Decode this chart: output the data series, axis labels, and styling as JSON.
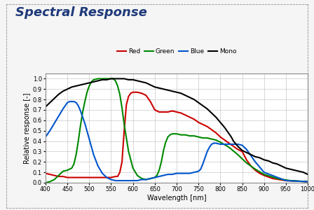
{
  "title": "Spectral Response",
  "xlabel": "Wavelength [nm]",
  "ylabel": "Relative response [-]",
  "xlim": [
    400,
    1000
  ],
  "ylim": [
    0.0,
    1.05
  ],
  "xticks": [
    400,
    450,
    500,
    550,
    600,
    650,
    700,
    750,
    800,
    850,
    900,
    950,
    1000
  ],
  "yticks": [
    0.0,
    0.1,
    0.2,
    0.3,
    0.4,
    0.5,
    0.6,
    0.7,
    0.8,
    0.9,
    1.0
  ],
  "title_color": "#1F3A7A",
  "background_color": "#f5f5f5",
  "plot_bg_color": "#ffffff",
  "red": {
    "wavelengths": [
      400,
      410,
      420,
      430,
      440,
      450,
      460,
      470,
      480,
      490,
      500,
      510,
      520,
      530,
      540,
      550,
      560,
      565,
      570,
      575,
      580,
      585,
      590,
      595,
      600,
      605,
      610,
      620,
      630,
      640,
      650,
      660,
      670,
      680,
      690,
      700,
      710,
      720,
      730,
      740,
      750,
      760,
      770,
      780,
      790,
      800,
      810,
      820,
      830,
      840,
      850,
      860,
      870,
      880,
      890,
      900,
      920,
      950,
      1000
    ],
    "values": [
      0.09,
      0.08,
      0.07,
      0.06,
      0.06,
      0.05,
      0.05,
      0.05,
      0.05,
      0.05,
      0.05,
      0.05,
      0.05,
      0.05,
      0.05,
      0.05,
      0.06,
      0.06,
      0.1,
      0.2,
      0.5,
      0.75,
      0.83,
      0.86,
      0.87,
      0.87,
      0.87,
      0.86,
      0.84,
      0.78,
      0.7,
      0.68,
      0.68,
      0.68,
      0.69,
      0.68,
      0.67,
      0.65,
      0.63,
      0.61,
      0.58,
      0.56,
      0.54,
      0.51,
      0.48,
      0.44,
      0.41,
      0.38,
      0.35,
      0.32,
      0.3,
      0.22,
      0.16,
      0.12,
      0.09,
      0.07,
      0.04,
      0.02,
      0.01
    ],
    "color": "#cc0000",
    "linewidth": 1.5
  },
  "green": {
    "wavelengths": [
      400,
      410,
      420,
      430,
      440,
      450,
      460,
      465,
      470,
      475,
      480,
      485,
      490,
      495,
      500,
      505,
      510,
      520,
      530,
      540,
      550,
      555,
      560,
      565,
      570,
      575,
      580,
      590,
      600,
      610,
      620,
      630,
      640,
      650,
      655,
      660,
      665,
      670,
      675,
      680,
      685,
      690,
      695,
      700,
      710,
      720,
      730,
      740,
      750,
      760,
      770,
      780,
      790,
      800,
      820,
      840,
      860,
      880,
      900,
      930,
      960,
      1000
    ],
    "values": [
      0.0,
      0.01,
      0.03,
      0.07,
      0.11,
      0.12,
      0.14,
      0.18,
      0.27,
      0.4,
      0.55,
      0.68,
      0.78,
      0.87,
      0.93,
      0.97,
      0.99,
      1.0,
      1.0,
      1.0,
      1.0,
      1.0,
      0.98,
      0.93,
      0.85,
      0.72,
      0.56,
      0.3,
      0.14,
      0.07,
      0.04,
      0.03,
      0.04,
      0.05,
      0.07,
      0.12,
      0.2,
      0.31,
      0.39,
      0.44,
      0.46,
      0.47,
      0.47,
      0.47,
      0.46,
      0.46,
      0.45,
      0.45,
      0.44,
      0.43,
      0.43,
      0.42,
      0.41,
      0.39,
      0.34,
      0.27,
      0.19,
      0.13,
      0.08,
      0.04,
      0.02,
      0.01
    ],
    "color": "#008800",
    "linewidth": 1.5
  },
  "blue": {
    "wavelengths": [
      400,
      410,
      420,
      430,
      440,
      450,
      455,
      460,
      465,
      470,
      475,
      480,
      490,
      500,
      510,
      520,
      530,
      540,
      550,
      560,
      570,
      580,
      590,
      600,
      610,
      620,
      630,
      640,
      650,
      660,
      670,
      680,
      690,
      700,
      710,
      720,
      730,
      740,
      750,
      755,
      760,
      765,
      770,
      775,
      780,
      785,
      790,
      800,
      810,
      820,
      830,
      840,
      850,
      860,
      880,
      900,
      950,
      1000
    ],
    "values": [
      0.44,
      0.5,
      0.57,
      0.64,
      0.71,
      0.77,
      0.78,
      0.78,
      0.78,
      0.77,
      0.74,
      0.69,
      0.57,
      0.42,
      0.27,
      0.16,
      0.09,
      0.05,
      0.03,
      0.02,
      0.02,
      0.02,
      0.02,
      0.02,
      0.02,
      0.03,
      0.03,
      0.04,
      0.05,
      0.06,
      0.07,
      0.08,
      0.08,
      0.09,
      0.09,
      0.09,
      0.09,
      0.1,
      0.11,
      0.13,
      0.18,
      0.24,
      0.3,
      0.34,
      0.37,
      0.38,
      0.38,
      0.37,
      0.37,
      0.37,
      0.37,
      0.37,
      0.36,
      0.32,
      0.2,
      0.1,
      0.02,
      0.01
    ],
    "color": "#0055cc",
    "linewidth": 1.5
  },
  "mono": {
    "wavelengths": [
      400,
      410,
      420,
      430,
      440,
      450,
      460,
      470,
      480,
      490,
      500,
      510,
      520,
      530,
      540,
      550,
      560,
      570,
      580,
      590,
      600,
      610,
      620,
      630,
      640,
      650,
      660,
      670,
      680,
      690,
      700,
      710,
      720,
      730,
      740,
      750,
      760,
      770,
      780,
      790,
      800,
      810,
      820,
      825,
      830,
      840,
      850,
      860,
      870,
      880,
      890,
      900,
      910,
      920,
      930,
      940,
      950,
      960,
      970,
      980,
      990,
      1000
    ],
    "values": [
      0.73,
      0.77,
      0.81,
      0.85,
      0.88,
      0.9,
      0.92,
      0.93,
      0.94,
      0.95,
      0.96,
      0.97,
      0.98,
      0.99,
      0.99,
      1.0,
      1.0,
      1.0,
      1.0,
      0.99,
      0.99,
      0.98,
      0.97,
      0.96,
      0.94,
      0.92,
      0.91,
      0.9,
      0.89,
      0.88,
      0.87,
      0.86,
      0.84,
      0.82,
      0.8,
      0.77,
      0.74,
      0.71,
      0.67,
      0.63,
      0.58,
      0.53,
      0.47,
      0.44,
      0.4,
      0.35,
      0.31,
      0.29,
      0.27,
      0.25,
      0.24,
      0.22,
      0.21,
      0.19,
      0.18,
      0.16,
      0.14,
      0.13,
      0.12,
      0.11,
      0.1,
      0.08
    ],
    "color": "#000000",
    "linewidth": 1.5
  },
  "grid_color": "#bbbbbb",
  "border_color": "#888888",
  "outer_border_color": "#aaaaaa",
  "legend_labels": [
    "Red",
    "Green",
    "Blue",
    "Mono"
  ]
}
